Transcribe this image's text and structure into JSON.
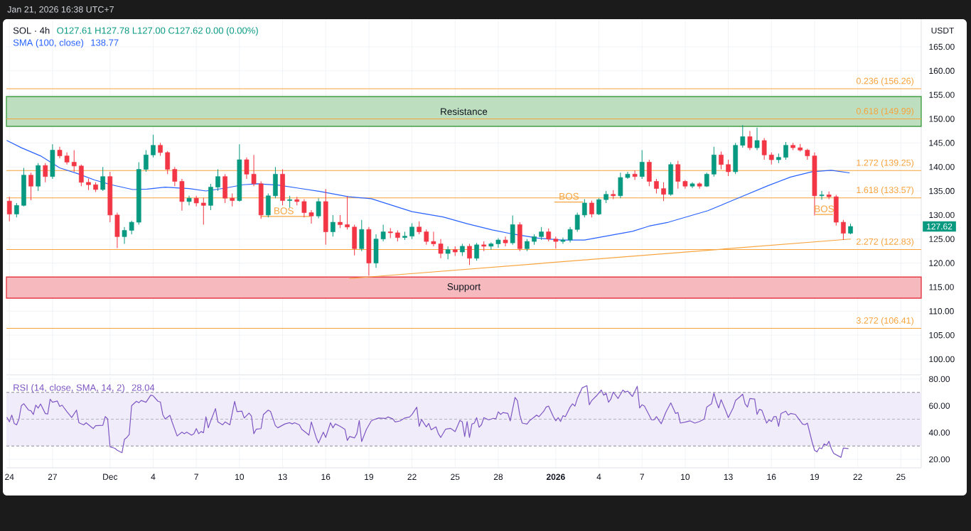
{
  "chart_data": [
    {
      "type": "candlestick",
      "title": "SOL · 4h",
      "subtitle": "O127.61 H127.78 L127.00 C127.62 0.00 (0.00%)",
      "ylabel": "USDT",
      "annotations": [
        "Jan 21, 2026 16:38 UTC+7",
        "138.77",
        "127.62",
        {
          "text": "BOS",
          "x": "2025-12-13T02:00",
          "y": 129.7
        },
        {
          "text": "BOS",
          "x": "2026-01-01T22:00",
          "y": 132.7
        },
        {
          "text": "BOS",
          "x": "2026-01-19T16:00",
          "y": 130.1
        }
      ],
      "x": [
        "2025-11-24T00:00",
        "2025-11-24T12:00",
        "2025-11-25T00:00",
        "2025-11-25T12:00",
        "2025-11-26T00:00",
        "2025-11-26T12:00",
        "2025-11-27T00:00",
        "2025-11-27T12:00",
        "2025-11-28T00:00",
        "2025-11-28T12:00",
        "2025-11-29T00:00",
        "2025-11-29T12:00",
        "2025-11-30T00:00",
        "2025-11-30T12:00",
        "2025-12-01T00:00",
        "2025-12-01T12:00",
        "2025-12-02T00:00",
        "2025-12-02T12:00",
        "2025-12-03T00:00",
        "2025-12-03T12:00",
        "2025-12-04T00:00",
        "2025-12-04T12:00",
        "2025-12-05T00:00",
        "2025-12-05T12:00",
        "2025-12-06T00:00",
        "2025-12-06T12:00",
        "2025-12-07T00:00",
        "2025-12-07T12:00",
        "2025-12-08T00:00",
        "2025-12-08T12:00",
        "2025-12-09T00:00",
        "2025-12-09T12:00",
        "2025-12-10T00:00",
        "2025-12-10T12:00",
        "2025-12-11T00:00",
        "2025-12-11T12:00",
        "2025-12-12T00:00",
        "2025-12-12T12:00",
        "2025-12-13T00:00",
        "2025-12-13T12:00",
        "2025-12-14T00:00",
        "2025-12-14T12:00",
        "2025-12-15T00:00",
        "2025-12-15T12:00",
        "2025-12-16T00:00",
        "2025-12-16T12:00",
        "2025-12-17T00:00",
        "2025-12-17T12:00",
        "2025-12-18T00:00",
        "2025-12-18T12:00",
        "2025-12-19T00:00",
        "2025-12-19T12:00",
        "2025-12-20T00:00",
        "2025-12-20T12:00",
        "2025-12-21T00:00",
        "2025-12-21T12:00",
        "2025-12-22T00:00",
        "2025-12-22T12:00",
        "2025-12-23T00:00",
        "2025-12-23T12:00",
        "2025-12-24T00:00",
        "2025-12-24T12:00",
        "2025-12-25T00:00",
        "2025-12-25T12:00",
        "2025-12-26T00:00",
        "2025-12-26T12:00",
        "2025-12-27T00:00",
        "2025-12-27T12:00",
        "2025-12-28T00:00",
        "2025-12-28T12:00",
        "2025-12-29T00:00",
        "2025-12-29T12:00",
        "2025-12-30T00:00",
        "2025-12-30T12:00",
        "2025-12-31T00:00",
        "2025-12-31T12:00",
        "2026-01-01T00:00",
        "2026-01-01T12:00",
        "2026-01-02T00:00",
        "2026-01-02T12:00",
        "2026-01-03T00:00",
        "2026-01-03T12:00",
        "2026-01-04T00:00",
        "2026-01-04T12:00",
        "2026-01-05T00:00",
        "2026-01-05T12:00",
        "2026-01-06T00:00",
        "2026-01-06T12:00",
        "2026-01-07T00:00",
        "2026-01-07T12:00",
        "2026-01-08T00:00",
        "2026-01-08T12:00",
        "2026-01-09T00:00",
        "2026-01-09T12:00",
        "2026-01-10T00:00",
        "2026-01-10T12:00",
        "2026-01-11T00:00",
        "2026-01-11T12:00",
        "2026-01-12T00:00",
        "2026-01-12T12:00",
        "2026-01-13T00:00",
        "2026-01-13T12:00",
        "2026-01-14T00:00",
        "2026-01-14T12:00",
        "2026-01-15T00:00",
        "2026-01-15T12:00",
        "2026-01-16T00:00",
        "2026-01-16T12:00",
        "2026-01-17T00:00",
        "2026-01-17T12:00",
        "2026-01-18T00:00",
        "2026-01-18T12:00",
        "2026-01-19T00:00",
        "2026-01-19T12:00",
        "2026-01-20T00:00",
        "2026-01-20T12:00",
        "2026-01-21T00:00",
        "2026-01-21T12:00"
      ],
      "ohlc": [
        [
          132.9,
          133.8,
          128.7,
          130.2
        ],
        [
          130.2,
          132.5,
          129.5,
          132.0
        ],
        [
          132.0,
          139.8,
          131.8,
          138.3
        ],
        [
          138.3,
          138.8,
          133.1,
          136.0
        ],
        [
          136.0,
          140.8,
          135.0,
          140.3
        ],
        [
          140.3,
          140.8,
          136.8,
          138.0
        ],
        [
          138.0,
          144.7,
          137.5,
          143.5
        ],
        [
          143.5,
          144.2,
          141.8,
          142.3
        ],
        [
          142.3,
          143.0,
          140.5,
          141.0
        ],
        [
          141.0,
          143.5,
          139.0,
          140.2
        ],
        [
          140.2,
          140.5,
          136.0,
          136.8
        ],
        [
          136.8,
          137.6,
          135.2,
          136.3
        ],
        [
          136.3,
          136.8,
          134.8,
          135.3
        ],
        [
          135.3,
          140.0,
          135.0,
          138.0
        ],
        [
          138.0,
          139.0,
          128.5,
          130.0
        ],
        [
          130.0,
          130.5,
          123.1,
          125.5
        ],
        [
          125.5,
          127.5,
          124.0,
          126.8
        ],
        [
          126.8,
          128.8,
          126.0,
          128.5
        ],
        [
          128.5,
          141.0,
          128.0,
          139.5
        ],
        [
          139.5,
          143.5,
          139.0,
          142.5
        ],
        [
          142.5,
          146.7,
          142.0,
          144.5
        ],
        [
          144.5,
          145.0,
          142.3,
          143.0
        ],
        [
          143.0,
          143.3,
          138.5,
          139.5
        ],
        [
          139.5,
          140.0,
          136.0,
          137.0
        ],
        [
          137.0,
          137.5,
          130.9,
          132.8
        ],
        [
          132.8,
          134.0,
          132.0,
          133.5
        ],
        [
          133.5,
          134.0,
          131.8,
          132.5
        ],
        [
          132.5,
          133.6,
          128.0,
          132.0
        ],
        [
          132.0,
          136.5,
          131.0,
          135.8
        ],
        [
          135.8,
          139.5,
          135.0,
          138.0
        ],
        [
          138.0,
          138.5,
          132.5,
          133.5
        ],
        [
          133.5,
          134.5,
          131.8,
          133.0
        ],
        [
          133.0,
          144.7,
          132.8,
          141.5
        ],
        [
          141.5,
          142.0,
          137.5,
          138.5
        ],
        [
          138.5,
          142.5,
          136.0,
          136.5
        ],
        [
          136.5,
          137.0,
          129.2,
          130.0
        ],
        [
          130.0,
          134.5,
          129.5,
          134.0
        ],
        [
          134.0,
          140.0,
          133.5,
          138.5
        ],
        [
          138.5,
          139.5,
          132.0,
          133.0
        ],
        [
          133.0,
          134.0,
          131.5,
          133.2
        ],
        [
          133.2,
          133.8,
          132.0,
          132.8
        ],
        [
          132.8,
          133.3,
          129.5,
          130.5
        ],
        [
          130.5,
          131.0,
          128.2,
          129.8
        ],
        [
          129.8,
          133.5,
          129.3,
          132.8
        ],
        [
          132.8,
          135.4,
          123.8,
          126.5
        ],
        [
          126.5,
          130.0,
          125.5,
          128.5
        ],
        [
          128.5,
          130.0,
          127.3,
          128.0
        ],
        [
          128.0,
          133.9,
          127.0,
          127.5
        ],
        [
          127.5,
          128.0,
          121.6,
          123.0
        ],
        [
          123.0,
          129.0,
          122.5,
          127.0
        ],
        [
          127.0,
          127.5,
          117.4,
          120.0
        ],
        [
          120.0,
          126.0,
          119.0,
          125.0
        ],
        [
          125.0,
          128.0,
          124.5,
          126.5
        ],
        [
          126.5,
          127.3,
          125.2,
          126.3
        ],
        [
          126.3,
          126.8,
          124.5,
          125.3
        ],
        [
          125.3,
          126.5,
          124.8,
          125.6
        ],
        [
          125.6,
          128.3,
          125.0,
          127.5
        ],
        [
          127.5,
          128.7,
          126.0,
          126.5
        ],
        [
          126.5,
          127.0,
          123.8,
          124.5
        ],
        [
          124.5,
          126.5,
          123.5,
          124.0
        ],
        [
          124.0,
          125.0,
          121.0,
          122.0
        ],
        [
          122.0,
          123.5,
          120.8,
          122.8
        ],
        [
          122.8,
          123.5,
          121.5,
          122.3
        ],
        [
          122.3,
          124.0,
          121.5,
          123.5
        ],
        [
          123.5,
          124.0,
          119.6,
          121.0
        ],
        [
          121.0,
          124.2,
          120.5,
          123.8
        ],
        [
          123.8,
          124.5,
          122.5,
          123.5
        ],
        [
          123.5,
          124.3,
          122.8,
          124.0
        ],
        [
          124.0,
          125.2,
          123.2,
          124.8
        ],
        [
          124.8,
          125.5,
          123.5,
          124.2
        ],
        [
          124.2,
          129.9,
          123.8,
          128.0
        ],
        [
          128.0,
          128.5,
          122.5,
          123.0
        ],
        [
          123.0,
          125.0,
          122.5,
          124.5
        ],
        [
          124.5,
          126.0,
          123.8,
          125.5
        ],
        [
          125.5,
          127.5,
          124.8,
          126.5
        ],
        [
          126.5,
          127.2,
          124.5,
          125.0
        ],
        [
          125.0,
          125.5,
          123.0,
          124.5
        ],
        [
          124.5,
          125.3,
          124.0,
          124.8
        ],
        [
          124.8,
          127.5,
          124.3,
          127.0
        ],
        [
          127.0,
          130.5,
          126.5,
          130.0
        ],
        [
          130.0,
          133.3,
          129.5,
          132.5
        ],
        [
          132.5,
          133.0,
          129.5,
          130.2
        ],
        [
          130.2,
          133.5,
          130.0,
          133.2
        ],
        [
          133.2,
          135.0,
          132.5,
          134.3
        ],
        [
          134.3,
          135.2,
          133.3,
          134.0
        ],
        [
          134.0,
          138.8,
          133.5,
          137.8
        ],
        [
          137.8,
          139.0,
          137.5,
          138.5
        ],
        [
          138.5,
          139.3,
          137.3,
          138.0
        ],
        [
          138.0,
          143.5,
          137.5,
          141.0
        ],
        [
          141.0,
          141.5,
          136.0,
          137.0
        ],
        [
          137.0,
          137.5,
          134.5,
          135.5
        ],
        [
          135.5,
          136.8,
          132.9,
          134.3
        ],
        [
          134.3,
          141.0,
          134.0,
          140.5
        ],
        [
          140.5,
          141.3,
          135.5,
          137.0
        ],
        [
          137.0,
          137.3,
          135.5,
          136.0
        ],
        [
          136.0,
          136.8,
          135.6,
          136.5
        ],
        [
          136.5,
          136.8,
          135.5,
          136.0
        ],
        [
          136.0,
          138.8,
          135.8,
          138.5
        ],
        [
          138.5,
          144.2,
          138.0,
          142.5
        ],
        [
          142.5,
          143.2,
          139.5,
          140.5
        ],
        [
          140.5,
          141.5,
          138.1,
          139.0
        ],
        [
          139.0,
          145.0,
          138.5,
          144.5
        ],
        [
          144.5,
          148.7,
          144.0,
          146.3
        ],
        [
          146.3,
          147.5,
          143.5,
          144.0
        ],
        [
          144.0,
          148.2,
          143.5,
          145.5
        ],
        [
          145.5,
          146.0,
          141.5,
          142.5
        ],
        [
          142.5,
          143.0,
          140.5,
          141.5
        ],
        [
          141.5,
          142.8,
          140.8,
          142.0
        ],
        [
          142.0,
          145.2,
          141.5,
          144.5
        ],
        [
          144.5,
          145.0,
          143.5,
          144.0
        ],
        [
          144.0,
          144.8,
          143.2,
          143.5
        ],
        [
          143.5,
          143.8,
          141.5,
          142.3
        ],
        [
          142.3,
          143.0,
          129.9,
          134.0
        ],
        [
          134.0,
          135.0,
          133.2,
          134.2
        ],
        [
          134.2,
          134.9,
          133.3,
          133.8
        ],
        [
          133.8,
          134.2,
          127.8,
          128.5
        ],
        [
          128.5,
          129.0,
          124.8,
          126.2
        ],
        [
          126.2,
          128.2,
          126.0,
          127.62
        ]
      ],
      "colors": [
        "#f23645",
        "#089981",
        "#089981",
        "#f23645",
        "#089981",
        "#f23645",
        "#089981",
        "#f23645",
        "#f23645",
        "#f23645",
        "#f23645",
        "#f23645",
        "#f23645",
        "#089981",
        "#f23645",
        "#f23645",
        "#089981",
        "#089981",
        "#089981",
        "#089981",
        "#089981",
        "#f23645",
        "#f23645",
        "#f23645",
        "#f23645",
        "#089981",
        "#f23645",
        "#f23645",
        "#089981",
        "#089981",
        "#f23645",
        "#f23645",
        "#089981",
        "#f23645",
        "#f23645",
        "#f23645",
        "#089981",
        "#089981",
        "#f23645",
        "#089981",
        "#f23645",
        "#f23645",
        "#f23645",
        "#089981",
        "#f23645",
        "#089981",
        "#f23645",
        "#f23645",
        "#f23645",
        "#089981",
        "#f23645",
        "#089981",
        "#089981",
        "#f23645",
        "#f23645",
        "#089981",
        "#089981",
        "#f23645",
        "#f23645",
        "#f23645",
        "#f23645",
        "#089981",
        "#f23645",
        "#089981",
        "#f23645",
        "#089981",
        "#f23645",
        "#089981",
        "#089981",
        "#f23645",
        "#089981",
        "#f23645",
        "#089981",
        "#089981",
        "#089981",
        "#f23645",
        "#f23645",
        "#089981",
        "#089981",
        "#089981",
        "#089981",
        "#f23645",
        "#089981",
        "#089981",
        "#f23645",
        "#089981",
        "#089981",
        "#f23645",
        "#089981",
        "#f23645",
        "#f23645",
        "#f23645",
        "#089981",
        "#f23645",
        "#f23645",
        "#089981",
        "#f23645",
        "#089981",
        "#089981",
        "#f23645",
        "#f23645",
        "#089981",
        "#089981",
        "#f23645",
        "#089981",
        "#f23645",
        "#f23645",
        "#089981",
        "#089981",
        "#f23645",
        "#f23645",
        "#f23645",
        "#f23645",
        "#089981",
        "#f23645",
        "#f23645",
        "#f23645",
        "#089981"
      ],
      "series": [
        {
          "type": "line",
          "name": "SMA (100, close)",
          "color": "#2962ff",
          "x": [
            "2025-11-23T20:00",
            "2025-11-24T20:00",
            "2025-11-26T04:00",
            "2025-11-27T12:00",
            "2025-11-28T18:00",
            "2025-11-29T22:00",
            "2025-12-01T02:00",
            "2025-12-02T14:00",
            "2025-12-03T14:00",
            "2025-12-04T20:00",
            "2025-12-06T12:00",
            "2025-12-07T16:00",
            "2025-12-09T00:00",
            "2025-12-10T06:00",
            "2025-12-11T06:00",
            "2025-12-12T18:00",
            "2025-12-14T02:00",
            "2025-12-15T14:00",
            "2025-12-17T14:00",
            "2025-12-19T04:00",
            "2025-12-22T00:00",
            "2025-12-24T04:00",
            "2025-12-25T20:00",
            "2025-12-27T14:00",
            "2025-12-29T02:00",
            "2025-12-30T18:00",
            "2026-01-01T09:00",
            "2026-01-03T00:00",
            "2026-01-04T16:00",
            "2026-01-06T08:00",
            "2026-01-07T12:00",
            "2026-01-08T20:00",
            "2026-01-11T14:00",
            "2026-01-13T18:00",
            "2026-01-15T18:00",
            "2026-01-17T08:00",
            "2026-01-18T20:00",
            "2026-01-20T04:00",
            "2026-01-21T10:00"
          ],
          "values": [
            145.5,
            144.0,
            142.3,
            139.8,
            138.6,
            137.3,
            136.3,
            135.3,
            135.4,
            135.8,
            135.5,
            135.0,
            135.6,
            136.3,
            136.5,
            136.2,
            135.6,
            134.9,
            133.8,
            133.4,
            130.7,
            129.6,
            128.2,
            126.9,
            126.0,
            125.2,
            124.8,
            124.8,
            125.7,
            126.6,
            127.7,
            128.5,
            130.9,
            133.6,
            136.1,
            137.9,
            139.0,
            139.3,
            138.77
          ]
        },
        {
          "type": "line",
          "color": "#f7a541",
          "x": [
            "2025-12-17T16:00",
            "2026-01-21T12:00"
          ],
          "values": [
            116.8,
            125.0
          ]
        },
        {
          "type": "line",
          "color": "#f7a541",
          "x": [
            "2025-12-11T12:00",
            "2025-12-14T22:00"
          ],
          "values": [
            129.7,
            129.7
          ]
        },
        {
          "type": "line",
          "color": "#f7a541",
          "x": [
            "2025-12-31T22:00",
            "2026-01-02T21:00"
          ],
          "values": [
            132.7,
            132.7
          ]
        },
        {
          "type": "line",
          "color": "#f7a541",
          "x": [
            "2026-01-19T02:00",
            "2026-01-20T06:00"
          ],
          "values": [
            130.1,
            130.1
          ]
        }
      ],
      "ref_lines": [
        {
          "axis": "y",
          "value": 156.26,
          "label": "0.236 (156.26)",
          "color": "#f7a23b"
        },
        {
          "axis": "y",
          "value": 149.99,
          "label": "0.618 (149.99)",
          "color": "#f7a23b"
        },
        {
          "axis": "y",
          "value": 139.25,
          "label": "1.272 (139.25)",
          "color": "#f7a23b"
        },
        {
          "axis": "y",
          "value": 133.57,
          "label": "1.618 (133.57)",
          "color": "#f7a23b"
        },
        {
          "axis": "y",
          "value": 122.83,
          "label": "2.272 (122.83)",
          "color": "#f7a23b"
        },
        {
          "axis": "y",
          "value": 106.41,
          "label": "3.272 (106.41)",
          "color": "#f7a23b"
        }
      ],
      "bands": [
        {
          "axis": "y",
          "from": 148.45,
          "to": 154.65,
          "label": "Resistance",
          "color": "#43a047"
        },
        {
          "axis": "y",
          "from": 112.7,
          "to": 117.1,
          "label": "Support",
          "color": "#e53945"
        }
      ],
      "xlim": [
        "2025-11-23T19:00",
        "2026-01-26T10:00"
      ],
      "ylim": [
        96.75,
        170.75
      ],
      "xticks": [
        {
          "value": "2025-11-24",
          "label": null
        },
        {
          "value": "2025-11-27",
          "label": null
        },
        {
          "value": "2025-12-01",
          "label": null
        },
        {
          "value": "2025-12-04",
          "label": null
        },
        {
          "value": "2025-12-07",
          "label": null
        },
        {
          "value": "2025-12-10",
          "label": null
        },
        {
          "value": "2025-12-13",
          "label": null
        },
        {
          "value": "2025-12-16",
          "label": null
        },
        {
          "value": "2025-12-19",
          "label": null
        },
        {
          "value": "2025-12-22",
          "label": null
        },
        {
          "value": "2025-12-25",
          "label": null
        },
        {
          "value": "2025-12-28",
          "label": null
        },
        {
          "value": "2026-01-01",
          "label": null
        },
        {
          "value": "2026-01-04",
          "label": null
        },
        {
          "value": "2026-01-07",
          "label": null
        },
        {
          "value": "2026-01-10",
          "label": null
        },
        {
          "value": "2026-01-13",
          "label": null
        },
        {
          "value": "2026-01-16",
          "label": null
        },
        {
          "value": "2026-01-19",
          "label": null
        },
        {
          "value": "2026-01-22",
          "label": null
        },
        {
          "value": "2026-01-25",
          "label": null
        }
      ],
      "yticks": [
        {
          "value": 100,
          "label": "100.00"
        },
        {
          "value": 105,
          "label": "105.00"
        },
        {
          "value": 110,
          "label": "110.00"
        },
        {
          "value": 115,
          "label": "115.00"
        },
        {
          "value": 120,
          "label": "120.00"
        },
        {
          "value": 125,
          "label": "125.00"
        },
        {
          "value": 130,
          "label": "130.00"
        },
        {
          "value": 135,
          "label": "135.00"
        },
        {
          "value": 140,
          "label": "140.00"
        },
        {
          "value": 145,
          "label": "145.00"
        },
        {
          "value": 150,
          "label": "150.00"
        },
        {
          "value": 155,
          "label": "155.00"
        },
        {
          "value": 160,
          "label": "160.00"
        },
        {
          "value": 165,
          "label": "165.00"
        }
      ],
      "tick_labels": "y",
      "grid": true,
      "legend": "top left"
    },
    {
      "type": "line",
      "annotations": [
        "28.04"
      ],
      "series": [
        {
          "name": "RSI (14, close, SMA, 14, 2)",
          "color": "#7e57c2",
          "x": [
            "2025-11-23T20:00",
            "2025-11-24T00:00",
            "2025-11-24T04:00",
            "2025-11-24T08:00",
            "2025-11-24T12:00",
            "2025-11-24T16:00",
            "2025-11-24T20:00",
            "2025-11-25T00:00",
            "2025-11-25T08:00",
            "2025-11-25T12:00",
            "2025-11-25T16:00",
            "2025-11-25T20:00",
            "2025-11-26T00:00",
            "2025-11-26T04:00",
            "2025-11-26T12:00",
            "2025-11-26T16:00",
            "2025-11-26T20:00",
            "2025-11-27T00:00",
            "2025-11-27T08:00",
            "2025-11-27T12:00",
            "2025-11-27T16:00",
            "2025-11-28T00:00",
            "2025-11-28T08:00",
            "2025-11-28T16:00",
            "2025-11-28T20:00",
            "2025-11-29T04:00",
            "2025-11-29T08:00",
            "2025-11-29T20:00",
            "2025-11-30T00:00",
            "2025-11-30T12:00",
            "2025-11-30T16:00",
            "2025-11-30T20:00",
            "2025-12-01T00:00",
            "2025-12-01T08:00",
            "2025-12-01T12:00",
            "2025-12-01T20:00",
            "2025-12-02T00:00",
            "2025-12-02T04:00",
            "2025-12-02T08:00",
            "2025-12-02T12:00",
            "2025-12-02T20:00",
            "2025-12-03T00:00",
            "2025-12-03T04:00",
            "2025-12-03T12:00",
            "2025-12-03T20:00",
            "2025-12-04T00:00",
            "2025-12-04T08:00",
            "2025-12-04T12:00",
            "2025-12-04T16:00",
            "2025-12-04T20:00",
            "2025-12-05T04:00",
            "2025-12-05T08:00",
            "2025-12-05T16:00",
            "2025-12-06T00:00",
            "2025-12-06T04:00",
            "2025-12-06T08:00",
            "2025-12-06T16:00",
            "2025-12-06T20:00",
            "2025-12-07T00:00",
            "2025-12-07T04:00",
            "2025-12-07T08:00",
            "2025-12-07T12:00",
            "2025-12-07T16:00",
            "2025-12-07T20:00",
            "2025-12-08T00:00",
            "2025-12-08T08:00",
            "2025-12-08T12:00",
            "2025-12-08T20:00",
            "2025-12-09T00:00",
            "2025-12-09T08:00",
            "2025-12-09T16:00",
            "2025-12-09T20:00",
            "2025-12-10T04:00",
            "2025-12-10T08:00",
            "2025-12-10T16:00",
            "2025-12-10T20:00",
            "2025-12-11T00:00",
            "2025-12-11T04:00",
            "2025-12-11T12:00",
            "2025-12-11T16:00",
            "2025-12-12T00:00",
            "2025-12-12T04:00",
            "2025-12-12T12:00",
            "2025-12-12T16:00",
            "2025-12-13T04:00",
            "2025-12-13T12:00",
            "2025-12-13T16:00",
            "2025-12-13T20:00",
            "2025-12-14T04:00",
            "2025-12-14T08:00",
            "2025-12-14T16:00",
            "2025-12-14T20:00",
            "2025-12-15T00:00",
            "2025-12-15T08:00",
            "2025-12-15T12:00",
            "2025-12-15T20:00",
            "2025-12-16T00:00",
            "2025-12-16T08:00",
            "2025-12-16T12:00",
            "2025-12-16T16:00",
            "2025-12-17T00:00",
            "2025-12-17T08:00",
            "2025-12-17T12:00",
            "2025-12-17T16:00",
            "2025-12-18T00:00",
            "2025-12-18T04:00",
            "2025-12-18T08:00",
            "2025-12-18T12:00",
            "2025-12-18T20:00",
            "2025-12-19T04:00",
            "2025-12-19T08:00",
            "2025-12-19T16:00",
            "2025-12-20T04:00",
            "2025-12-20T08:00",
            "2025-12-20T16:00",
            "2025-12-20T20:00",
            "2025-12-21T04:00",
            "2025-12-21T12:00",
            "2025-12-21T20:00",
            "2025-12-22T00:00",
            "2025-12-22T08:00",
            "2025-12-22T12:00",
            "2025-12-22T16:00",
            "2025-12-22T20:00",
            "2025-12-23T00:00",
            "2025-12-23T04:00",
            "2025-12-23T08:00",
            "2025-12-23T16:00",
            "2025-12-23T20:00",
            "2025-12-24T00:00",
            "2025-12-24T08:00",
            "2025-12-24T16:00",
            "2025-12-24T20:00",
            "2025-12-25T00:00",
            "2025-12-25T08:00",
            "2025-12-25T12:00",
            "2025-12-25T16:00",
            "2025-12-25T20:00",
            "2025-12-26T00:00",
            "2025-12-26T04:00",
            "2025-12-26T08:00",
            "2025-12-26T12:00",
            "2025-12-26T16:00",
            "2025-12-26T20:00",
            "2025-12-27T00:00",
            "2025-12-27T08:00",
            "2025-12-27T16:00",
            "2025-12-27T20:00",
            "2025-12-28T00:00",
            "2025-12-28T04:00",
            "2025-12-28T08:00",
            "2025-12-28T16:00",
            "2025-12-28T20:00",
            "2025-12-29T04:00",
            "2025-12-29T08:00",
            "2025-12-29T12:00",
            "2025-12-29T16:00",
            "2025-12-30T00:00",
            "2025-12-30T04:00",
            "2025-12-30T08:00",
            "2025-12-30T16:00",
            "2025-12-30T20:00",
            "2025-12-31T04:00",
            "2025-12-31T08:00",
            "2025-12-31T12:00",
            "2025-12-31T20:00",
            "2026-01-01T00:00",
            "2026-01-01T04:00",
            "2026-01-01T08:00",
            "2026-01-01T12:00",
            "2026-01-01T16:00",
            "2026-01-02T00:00",
            "2026-01-02T04:00",
            "2026-01-02T08:00",
            "2026-01-02T12:00",
            "2026-01-02T20:00",
            "2026-01-03T04:00",
            "2026-01-03T08:00",
            "2026-01-03T12:00",
            "2026-01-03T20:00",
            "2026-01-04T04:00",
            "2026-01-04T08:00",
            "2026-01-04T12:00",
            "2026-01-04T16:00",
            "2026-01-04T20:00",
            "2026-01-05T00:00",
            "2026-01-05T08:00",
            "2026-01-05T16:00",
            "2026-01-05T20:00",
            "2026-01-06T00:00",
            "2026-01-06T08:00",
            "2026-01-06T16:00",
            "2026-01-06T20:00",
            "2026-01-07T00:00",
            "2026-01-07T04:00",
            "2026-01-07T16:00",
            "2026-01-07T20:00",
            "2026-01-08T00:00",
            "2026-01-08T08:00",
            "2026-01-08T16:00",
            "2026-01-09T00:00",
            "2026-01-09T08:00",
            "2026-01-09T12:00",
            "2026-01-09T16:00",
            "2026-01-10T00:00",
            "2026-01-10T08:00",
            "2026-01-10T16:00",
            "2026-01-11T00:00",
            "2026-01-11T08:00",
            "2026-01-11T12:00",
            "2026-01-11T20:00",
            "2026-01-12T00:00",
            "2026-01-12T04:00",
            "2026-01-12T08:00",
            "2026-01-12T12:00",
            "2026-01-12T20:00",
            "2026-01-13T00:00",
            "2026-01-13T08:00",
            "2026-01-13T12:00",
            "2026-01-13T20:00",
            "2026-01-14T00:00",
            "2026-01-14T04:00",
            "2026-01-14T08:00",
            "2026-01-14T12:00",
            "2026-01-14T20:00",
            "2026-01-15T00:00",
            "2026-01-15T04:00",
            "2026-01-15T08:00",
            "2026-01-15T16:00",
            "2026-01-15T20:00",
            "2026-01-16T00:00",
            "2026-01-16T04:00",
            "2026-01-16T08:00",
            "2026-01-16T12:00",
            "2026-01-16T16:00",
            "2026-01-17T00:00",
            "2026-01-17T04:00",
            "2026-01-17T08:00",
            "2026-01-17T16:00",
            "2026-01-17T20:00",
            "2026-01-18T04:00",
            "2026-01-18T08:00",
            "2026-01-18T12:00",
            "2026-01-18T20:00",
            "2026-01-19T00:00",
            "2026-01-19T04:00",
            "2026-01-19T08:00",
            "2026-01-19T12:00",
            "2026-01-19T16:00",
            "2026-01-19T20:00",
            "2026-01-20T00:00",
            "2026-01-20T04:00",
            "2026-01-20T08:00",
            "2026-01-20T16:00",
            "2026-01-20T20:00",
            "2026-01-21T00:00",
            "2026-01-21T08:00"
          ],
          "values": [
            51.3,
            48.0,
            53.1,
            46.9,
            45.8,
            50.2,
            60.1,
            61.6,
            56.8,
            56.3,
            53.5,
            60.5,
            58.3,
            61.4,
            54.2,
            53.9,
            64.9,
            62.7,
            63.6,
            59.6,
            60.5,
            55.7,
            51.3,
            56.8,
            47.4,
            45.8,
            47.4,
            43.0,
            45.2,
            45.4,
            52.0,
            50.2,
            29.4,
            28.3,
            26.8,
            25.0,
            34.9,
            36.4,
            38.6,
            60.1,
            63.4,
            62.3,
            64.0,
            62.7,
            68.0,
            67.5,
            63.4,
            62.9,
            53.5,
            50.2,
            52.9,
            47.4,
            37.5,
            40.3,
            39.2,
            40.3,
            38.1,
            39.2,
            43.0,
            39.2,
            40.8,
            39.9,
            51.8,
            43.6,
            48.7,
            57.9,
            48.0,
            45.8,
            48.0,
            45.8,
            63.4,
            55.7,
            56.1,
            50.9,
            54.6,
            52.4,
            39.2,
            42.5,
            43.0,
            53.5,
            56.8,
            55.7,
            45.2,
            43.6,
            46.5,
            47.4,
            46.5,
            47.4,
            45.8,
            42.5,
            39.7,
            38.1,
            48.0,
            36.4,
            32.2,
            40.3,
            36.4,
            47.4,
            43.6,
            46.5,
            44.7,
            42.5,
            34.2,
            37.1,
            36.0,
            39.2,
            49.1,
            33.3,
            42.5,
            48.7,
            49.6,
            50.9,
            50.6,
            51.7,
            50.2,
            48.0,
            48.7,
            50.9,
            51.7,
            53.5,
            59.0,
            44.7,
            49.8,
            46.9,
            44.3,
            46.9,
            42.1,
            44.3,
            39.2,
            36.4,
            42.5,
            43.2,
            42.1,
            40.8,
            49.1,
            48.0,
            37.1,
            48.3,
            36.4,
            46.4,
            47.1,
            51.2,
            44.0,
            45.9,
            51.2,
            49.5,
            50.7,
            50.2,
            55.5,
            53.6,
            55.0,
            54.3,
            48.8,
            66.3,
            63.9,
            53.1,
            47.1,
            46.4,
            48.8,
            50.2,
            53.1,
            51.9,
            56.0,
            59.1,
            59.8,
            51.9,
            48.8,
            51.2,
            48.3,
            52.6,
            51.9,
            59.1,
            61.5,
            59.8,
            65.5,
            73.4,
            75.1,
            60.8,
            63.9,
            67.5,
            71.8,
            67.9,
            69.4,
            62.7,
            65.1,
            70.3,
            65.5,
            71.8,
            70.3,
            71.0,
            67.0,
            74.6,
            58.4,
            60.8,
            59.8,
            49.5,
            49.5,
            51.9,
            46.6,
            55.5,
            62.2,
            54.3,
            55.0,
            47.1,
            47.8,
            48.8,
            47.1,
            48.3,
            50.2,
            59.1,
            61.5,
            69.4,
            63.1,
            58.4,
            64.6,
            56.0,
            51.2,
            58.4,
            63.9,
            67.0,
            68.7,
            61.5,
            59.1,
            65.5,
            65.1,
            53.6,
            57.4,
            56.7,
            47.1,
            49.5,
            48.3,
            51.9,
            51.9,
            44.7,
            54.3,
            56.0,
            53.1,
            54.3,
            53.6,
            51.2,
            46.4,
            45.9,
            47.1,
            32.8,
            26.8,
            25.6,
            28.7,
            28.0,
            31.6,
            30.4,
            33.5,
            28.0,
            24.4,
            22.5,
            21.5,
            28.5,
            28.04
          ]
        }
      ],
      "ref_lines": [
        {
          "axis": "y",
          "value": 70,
          "color": "#8a8d96",
          "line_style": "dashed"
        },
        {
          "axis": "y",
          "value": 50,
          "color": "#b2b5be",
          "line_style": "dashed"
        },
        {
          "axis": "y",
          "value": 30,
          "color": "#8a8d96",
          "line_style": "dashed"
        }
      ],
      "bands": [
        {
          "axis": "y",
          "from": 30,
          "to": 70,
          "color": "#f1ecfa"
        }
      ],
      "xlim": [
        "2025-11-23T19:00",
        "2026-01-26T10:00"
      ],
      "ylim": [
        13.7,
        82.1
      ],
      "xticks": [
        {
          "value": "2025-11-24",
          "label": "24"
        },
        {
          "value": "2025-11-27",
          "label": "27"
        },
        {
          "value": "2025-12-01",
          "label": "Dec"
        },
        {
          "value": "2025-12-04",
          "label": "4"
        },
        {
          "value": "2025-12-07",
          "label": "7"
        },
        {
          "value": "2025-12-10",
          "label": "10"
        },
        {
          "value": "2025-12-13",
          "label": "13"
        },
        {
          "value": "2025-12-16",
          "label": "16"
        },
        {
          "value": "2025-12-19",
          "label": "19"
        },
        {
          "value": "2025-12-22",
          "label": "22"
        },
        {
          "value": "2025-12-25",
          "label": "25"
        },
        {
          "value": "2025-12-28",
          "label": "28"
        },
        {
          "value": "2026-01-01",
          "label": "2026"
        },
        {
          "value": "2026-01-04",
          "label": "4"
        },
        {
          "value": "2026-01-07",
          "label": "7"
        },
        {
          "value": "2026-01-10",
          "label": "10"
        },
        {
          "value": "2026-01-13",
          "label": "13"
        },
        {
          "value": "2026-01-16",
          "label": "16"
        },
        {
          "value": "2026-01-19",
          "label": "19"
        },
        {
          "value": "2026-01-22",
          "label": "22"
        },
        {
          "value": "2026-01-25",
          "label": "25"
        }
      ],
      "yticks": [
        {
          "value": 20,
          "label": "20.00"
        },
        {
          "value": 40,
          "label": "40.00"
        },
        {
          "value": 60,
          "label": "60.00"
        },
        {
          "value": 80,
          "label": "80.00"
        }
      ],
      "grid": true,
      "legend": "top left"
    }
  ]
}
